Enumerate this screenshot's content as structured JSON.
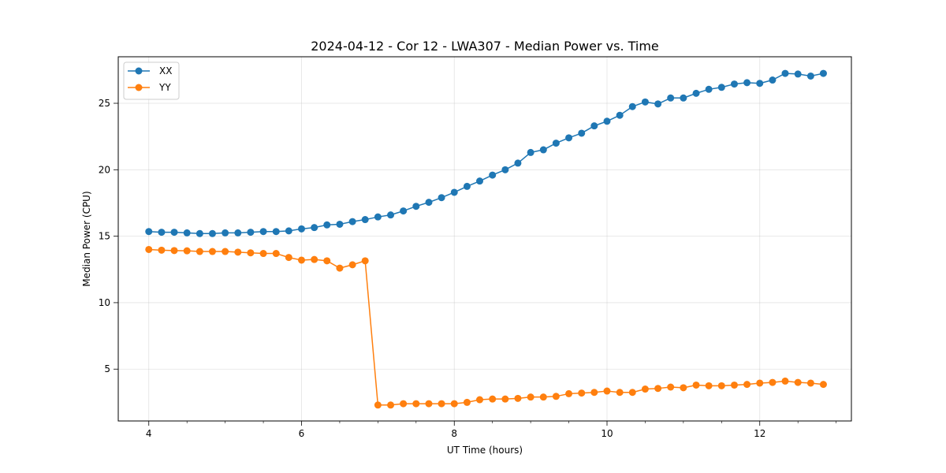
{
  "chart_data": {
    "type": "line",
    "title": "2024-04-12 - Cor 12 - LWA307 - Median Power vs. Time",
    "xlabel": "UT Time (hours)",
    "ylabel": "Median Power (CPU)",
    "xlim": [
      3.6,
      13.2
    ],
    "ylim": [
      1.1,
      28.5
    ],
    "xticks": [
      4,
      6,
      8,
      10,
      12
    ],
    "xtick_labels": [
      "4",
      "6",
      "8",
      "10",
      "12"
    ],
    "yticks": [
      5,
      10,
      15,
      20,
      25
    ],
    "ytick_labels": [
      "5",
      "10",
      "15",
      "20",
      "25"
    ],
    "grid": true,
    "legend_position": "top-left",
    "x": [
      4.0,
      4.167,
      4.333,
      4.5,
      4.667,
      4.833,
      5.0,
      5.167,
      5.333,
      5.5,
      5.667,
      5.833,
      6.0,
      6.167,
      6.333,
      6.5,
      6.667,
      6.833,
      7.0,
      7.167,
      7.333,
      7.5,
      7.667,
      7.833,
      8.0,
      8.167,
      8.333,
      8.5,
      8.667,
      8.833,
      9.0,
      9.167,
      9.333,
      9.5,
      9.667,
      9.833,
      10.0,
      10.167,
      10.333,
      10.5,
      10.667,
      10.833,
      11.0,
      11.167,
      11.333,
      11.5,
      11.667,
      11.833,
      12.0,
      12.167,
      12.333,
      12.5,
      12.667,
      12.833
    ],
    "series": [
      {
        "name": "XX",
        "color": "#1f77b4",
        "values": [
          15.35,
          15.3,
          15.3,
          15.25,
          15.2,
          15.2,
          15.25,
          15.25,
          15.3,
          15.35,
          15.35,
          15.4,
          15.55,
          15.65,
          15.85,
          15.9,
          16.1,
          16.25,
          16.45,
          16.6,
          16.9,
          17.25,
          17.55,
          17.9,
          18.3,
          18.75,
          19.15,
          19.6,
          20.0,
          20.5,
          21.3,
          21.5,
          22.0,
          22.4,
          22.75,
          23.3,
          23.65,
          24.1,
          24.75,
          25.1,
          24.95,
          25.4,
          25.4,
          25.75,
          26.05,
          26.2,
          26.45,
          26.55,
          26.5,
          26.75,
          27.25,
          27.2,
          27.05,
          27.25
        ]
      },
      {
        "name": "YY",
        "color": "#ff7f0e",
        "values": [
          14.0,
          13.95,
          13.92,
          13.9,
          13.85,
          13.85,
          13.85,
          13.8,
          13.75,
          13.7,
          13.7,
          13.4,
          13.2,
          13.25,
          13.15,
          12.6,
          12.85,
          13.15,
          2.3,
          2.3,
          2.4,
          2.4,
          2.4,
          2.4,
          2.4,
          2.5,
          2.7,
          2.75,
          2.75,
          2.8,
          2.9,
          2.9,
          2.95,
          3.15,
          3.2,
          3.25,
          3.35,
          3.25,
          3.25,
          3.5,
          3.55,
          3.65,
          3.6,
          3.8,
          3.75,
          3.75,
          3.8,
          3.85,
          3.95,
          4.0,
          4.1,
          4.0,
          3.95,
          3.85
        ]
      }
    ]
  }
}
